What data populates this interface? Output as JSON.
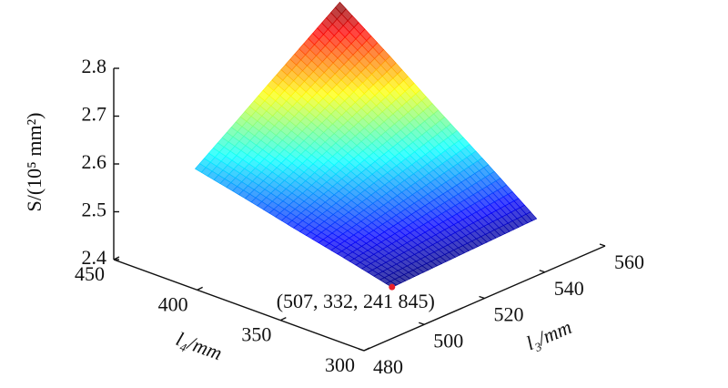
{
  "chart_data": {
    "type": "surface",
    "x": [
      507,
      519,
      531,
      543,
      555
    ],
    "y": [
      332,
      361,
      391,
      420,
      450
    ],
    "z": [
      [
        2.418,
        2.421,
        2.424,
        2.427,
        2.43
      ],
      [
        2.443,
        2.458,
        2.474,
        2.49,
        2.506
      ],
      [
        2.467,
        2.496,
        2.525,
        2.553,
        2.582
      ],
      [
        2.492,
        2.533,
        2.575,
        2.616,
        2.658
      ],
      [
        2.516,
        2.57,
        2.625,
        2.679,
        2.733
      ]
    ],
    "colormap": "jet",
    "xlabel": "l₃/mm",
    "ylabel": "l₄/mm",
    "zlabel": "S/(10⁵ mm²)",
    "xlim": [
      480,
      560
    ],
    "xticks": [
      480,
      500,
      520,
      540,
      560
    ],
    "ylim": [
      300,
      450
    ],
    "yticks": [
      300,
      350,
      400,
      450
    ],
    "zlim": [
      2.4,
      2.8
    ],
    "zticks": [
      2.4,
      2.5,
      2.6,
      2.7,
      2.8
    ],
    "annotation": {
      "x": 507,
      "y": 332,
      "z": 2.41845,
      "label": "(507, 332, 241 845)",
      "color": "#e8202a"
    }
  }
}
